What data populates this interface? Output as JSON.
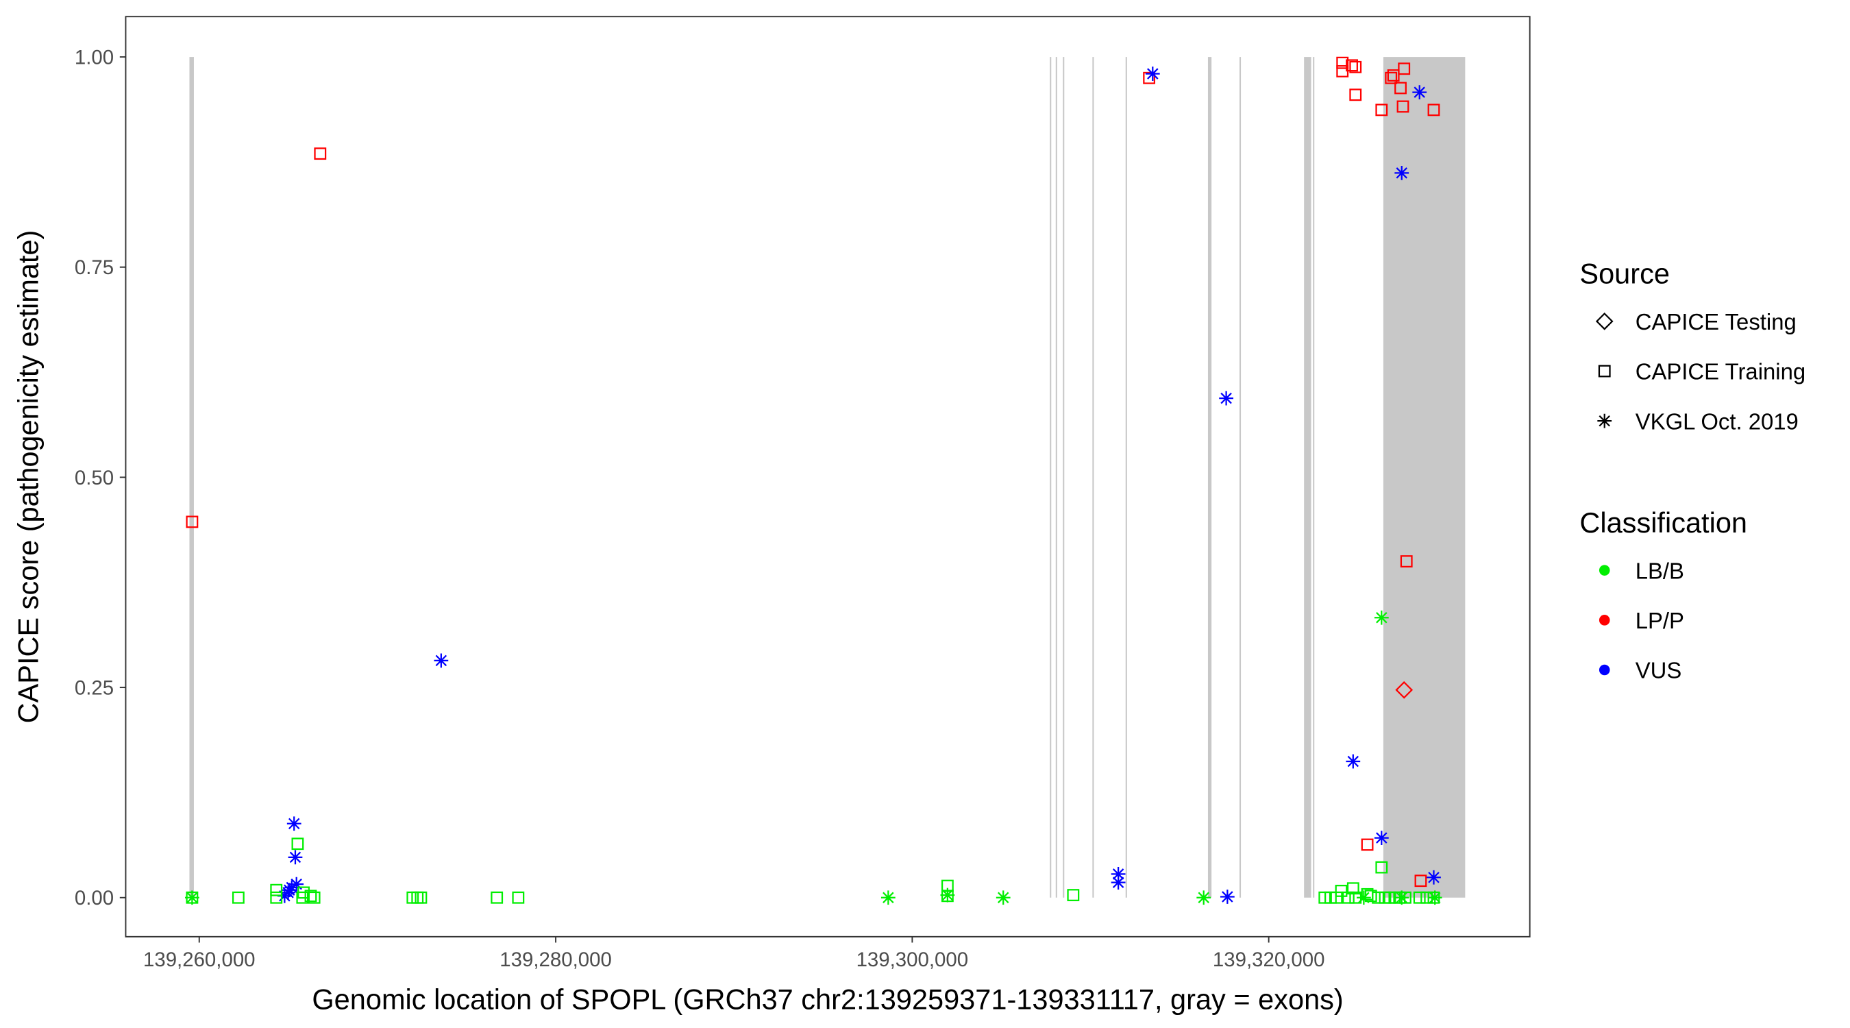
{
  "chart_data": {
    "type": "scatter",
    "xlabel": "Genomic location of SPOPL (GRCh37 chr2:139259371-139331117, gray = exons)",
    "ylabel": "CAPICE score (pathogenicity estimate)",
    "xlim": [
      139255875,
      139334647
    ],
    "ylim": [
      -0.0465,
      1.048
    ],
    "xticks": [
      139260000,
      139280000,
      139300000,
      139320000
    ],
    "xtick_labels": [
      "139,260,000",
      "139,280,000",
      "139,300,000",
      "139,320,000"
    ],
    "yticks": [
      0,
      0.25,
      0.5,
      0.75,
      1.0
    ],
    "ytick_labels": [
      "0.00",
      "0.25",
      "0.50",
      "0.75",
      "1.00"
    ],
    "grid": false,
    "exons": [
      [
        139259450,
        139259700
      ],
      [
        139307720,
        139307780
      ],
      [
        139308050,
        139308110
      ],
      [
        139308450,
        139308510
      ],
      [
        139310110,
        139310170
      ],
      [
        139311970,
        139312030
      ],
      [
        139316590,
        139316790
      ],
      [
        139318360,
        139318420
      ],
      [
        139321980,
        139322380
      ],
      [
        139322480,
        139322540
      ],
      [
        139326430,
        139331020
      ]
    ],
    "legend": {
      "placement": "right",
      "source_title": "Source",
      "sources": [
        {
          "key": "testing",
          "label": "CAPICE Testing",
          "shape": "diamond"
        },
        {
          "key": "training",
          "label": "CAPICE Training",
          "shape": "square"
        },
        {
          "key": "vkgl",
          "label": "VKGL Oct. 2019",
          "shape": "asterisk"
        }
      ],
      "class_title": "Classification",
      "classes": [
        {
          "key": "LB/B",
          "label": "LB/B",
          "color": "#00ee00"
        },
        {
          "key": "LP/P",
          "label": "LP/P",
          "color": "#ff0000"
        },
        {
          "key": "VUS",
          "label": "VUS",
          "color": "#0000ff"
        }
      ]
    },
    "points": [
      {
        "x": 139259601,
        "y": 0.447,
        "s": "training",
        "c": "LP/P"
      },
      {
        "x": 139266786,
        "y": 0.885,
        "s": "training",
        "c": "LP/P"
      },
      {
        "x": 139313291,
        "y": 0.975,
        "s": "training",
        "c": "LP/P"
      },
      {
        "x": 139324135,
        "y": 0.993,
        "s": "training",
        "c": "LP/P"
      },
      {
        "x": 139324135,
        "y": 0.983,
        "s": "training",
        "c": "LP/P"
      },
      {
        "x": 139324667,
        "y": 0.99,
        "s": "training",
        "c": "LP/P"
      },
      {
        "x": 139324867,
        "y": 0.988,
        "s": "training",
        "c": "LP/P"
      },
      {
        "x": 139324867,
        "y": 0.955,
        "s": "training",
        "c": "LP/P"
      },
      {
        "x": 139326330,
        "y": 0.937,
        "s": "training",
        "c": "LP/P"
      },
      {
        "x": 139326863,
        "y": 0.975,
        "s": "training",
        "c": "LP/P"
      },
      {
        "x": 139326996,
        "y": 0.978,
        "s": "training",
        "c": "LP/P"
      },
      {
        "x": 139327395,
        "y": 0.963,
        "s": "training",
        "c": "LP/P"
      },
      {
        "x": 139327594,
        "y": 0.986,
        "s": "training",
        "c": "LP/P"
      },
      {
        "x": 139327528,
        "y": 0.941,
        "s": "training",
        "c": "LP/P"
      },
      {
        "x": 139329258,
        "y": 0.937,
        "s": "training",
        "c": "LP/P"
      },
      {
        "x": 139327728,
        "y": 0.4,
        "s": "training",
        "c": "LP/P"
      },
      {
        "x": 139325532,
        "y": 0.063,
        "s": "training",
        "c": "LP/P"
      },
      {
        "x": 139328526,
        "y": 0.02,
        "s": "training",
        "c": "LP/P"
      },
      {
        "x": 139327594,
        "y": 0.247,
        "s": "testing",
        "c": "LP/P"
      },
      {
        "x": 139313490,
        "y": 0.98,
        "s": "vkgl",
        "c": "VUS"
      },
      {
        "x": 139317615,
        "y": 0.594,
        "s": "vkgl",
        "c": "VUS"
      },
      {
        "x": 139327461,
        "y": 0.862,
        "s": "vkgl",
        "c": "VUS"
      },
      {
        "x": 139328459,
        "y": 0.958,
        "s": "vkgl",
        "c": "VUS"
      },
      {
        "x": 139273572,
        "y": 0.282,
        "s": "vkgl",
        "c": "VUS"
      },
      {
        "x": 139324734,
        "y": 0.162,
        "s": "vkgl",
        "c": "VUS"
      },
      {
        "x": 139326330,
        "y": 0.071,
        "s": "vkgl",
        "c": "VUS"
      },
      {
        "x": 139329258,
        "y": 0.024,
        "s": "vkgl",
        "c": "VUS"
      },
      {
        "x": 139311561,
        "y": 0.028,
        "s": "vkgl",
        "c": "VUS"
      },
      {
        "x": 139311561,
        "y": 0.018,
        "s": "vkgl",
        "c": "VUS"
      },
      {
        "x": 139317682,
        "y": 0.001,
        "s": "vkgl",
        "c": "VUS"
      },
      {
        "x": 139265322,
        "y": 0.088,
        "s": "vkgl",
        "c": "VUS"
      },
      {
        "x": 139265389,
        "y": 0.048,
        "s": "vkgl",
        "c": "VUS"
      },
      {
        "x": 139264790,
        "y": 0.002,
        "s": "vkgl",
        "c": "VUS"
      },
      {
        "x": 139264990,
        "y": 0.006,
        "s": "vkgl",
        "c": "VUS"
      },
      {
        "x": 139265189,
        "y": 0.012,
        "s": "vkgl",
        "c": "VUS"
      },
      {
        "x": 139265455,
        "y": 0.016,
        "s": "vkgl",
        "c": "VUS"
      },
      {
        "x": 139265056,
        "y": 0.009,
        "s": "vkgl",
        "c": "VUS"
      },
      {
        "x": 139259601,
        "y": 0.0,
        "s": "vkgl",
        "c": "LB/B"
      },
      {
        "x": 139298654,
        "y": 0.0,
        "s": "vkgl",
        "c": "LB/B"
      },
      {
        "x": 139301980,
        "y": 0.003,
        "s": "vkgl",
        "c": "LB/B"
      },
      {
        "x": 139305107,
        "y": 0.0,
        "s": "vkgl",
        "c": "LB/B"
      },
      {
        "x": 139316351,
        "y": 0.0,
        "s": "vkgl",
        "c": "LB/B"
      },
      {
        "x": 139326330,
        "y": 0.333,
        "s": "vkgl",
        "c": "LB/B"
      },
      {
        "x": 139325332,
        "y": 0.0,
        "s": "vkgl",
        "c": "LB/B"
      },
      {
        "x": 139327461,
        "y": 0.0,
        "s": "vkgl",
        "c": "LB/B"
      },
      {
        "x": 139329324,
        "y": 0.0,
        "s": "vkgl",
        "c": "LB/B"
      },
      {
        "x": 139259601,
        "y": 0.0,
        "s": "training",
        "c": "LB/B"
      },
      {
        "x": 139262195,
        "y": 0.0,
        "s": "training",
        "c": "LB/B"
      },
      {
        "x": 139264324,
        "y": 0.009,
        "s": "training",
        "c": "LB/B"
      },
      {
        "x": 139264324,
        "y": 0.0,
        "s": "training",
        "c": "LB/B"
      },
      {
        "x": 139265522,
        "y": 0.064,
        "s": "training",
        "c": "LB/B"
      },
      {
        "x": 139265855,
        "y": 0.006,
        "s": "training",
        "c": "LB/B"
      },
      {
        "x": 139266254,
        "y": 0.002,
        "s": "training",
        "c": "LB/B"
      },
      {
        "x": 139266453,
        "y": 0.0,
        "s": "training",
        "c": "LB/B"
      },
      {
        "x": 139265788,
        "y": 0.0,
        "s": "training",
        "c": "LB/B"
      },
      {
        "x": 139271975,
        "y": 0.0,
        "s": "training",
        "c": "LB/B"
      },
      {
        "x": 139272242,
        "y": 0.0,
        "s": "training",
        "c": "LB/B"
      },
      {
        "x": 139272441,
        "y": 0.0,
        "s": "training",
        "c": "LB/B"
      },
      {
        "x": 139276699,
        "y": 0.0,
        "s": "training",
        "c": "LB/B"
      },
      {
        "x": 139277897,
        "y": 0.0,
        "s": "training",
        "c": "LB/B"
      },
      {
        "x": 139301980,
        "y": 0.014,
        "s": "training",
        "c": "LB/B"
      },
      {
        "x": 139301980,
        "y": 0.002,
        "s": "training",
        "c": "LB/B"
      },
      {
        "x": 139309033,
        "y": 0.003,
        "s": "training",
        "c": "LB/B"
      },
      {
        "x": 139323137,
        "y": 0.0,
        "s": "training",
        "c": "LB/B"
      },
      {
        "x": 139323470,
        "y": 0.0,
        "s": "training",
        "c": "LB/B"
      },
      {
        "x": 139323802,
        "y": 0.0,
        "s": "training",
        "c": "LB/B"
      },
      {
        "x": 139324068,
        "y": 0.008,
        "s": "training",
        "c": "LB/B"
      },
      {
        "x": 139324468,
        "y": 0.0,
        "s": "training",
        "c": "LB/B"
      },
      {
        "x": 139324734,
        "y": 0.011,
        "s": "training",
        "c": "LB/B"
      },
      {
        "x": 139324867,
        "y": 0.0,
        "s": "training",
        "c": "LB/B"
      },
      {
        "x": 139325532,
        "y": 0.004,
        "s": "training",
        "c": "LB/B"
      },
      {
        "x": 139325732,
        "y": 0.002,
        "s": "training",
        "c": "LB/B"
      },
      {
        "x": 139326131,
        "y": 0.0,
        "s": "training",
        "c": "LB/B"
      },
      {
        "x": 139326330,
        "y": 0.036,
        "s": "training",
        "c": "LB/B"
      },
      {
        "x": 139326530,
        "y": 0.0,
        "s": "training",
        "c": "LB/B"
      },
      {
        "x": 139326796,
        "y": 0.0,
        "s": "training",
        "c": "LB/B"
      },
      {
        "x": 139327062,
        "y": 0.0,
        "s": "training",
        "c": "LB/B"
      },
      {
        "x": 139327328,
        "y": 0.0,
        "s": "training",
        "c": "LB/B"
      },
      {
        "x": 139327661,
        "y": 0.0,
        "s": "training",
        "c": "LB/B"
      },
      {
        "x": 139328459,
        "y": 0.0,
        "s": "training",
        "c": "LB/B"
      },
      {
        "x": 139328859,
        "y": 0.0,
        "s": "training",
        "c": "LB/B"
      },
      {
        "x": 139329258,
        "y": 0.0,
        "s": "training",
        "c": "LB/B"
      }
    ]
  }
}
